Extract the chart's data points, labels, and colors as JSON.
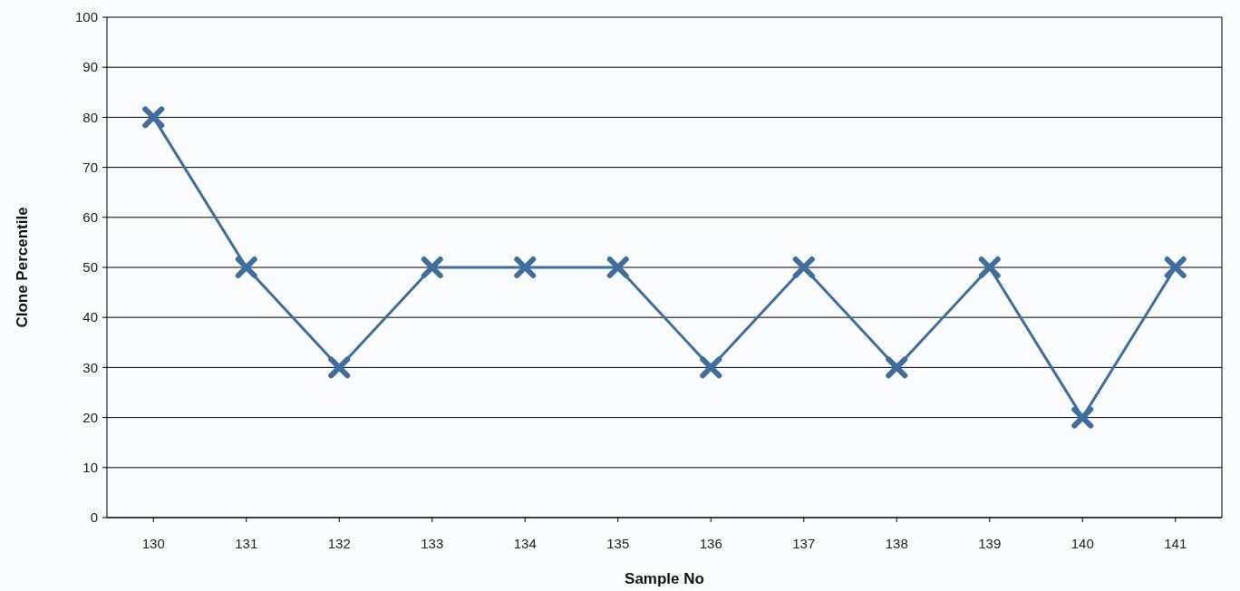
{
  "chart_data": {
    "type": "line",
    "xlabel": "Sample No",
    "ylabel": "Clone Percentile",
    "categories": [
      "130",
      "131",
      "132",
      "133",
      "134",
      "135",
      "136",
      "137",
      "138",
      "139",
      "140",
      "141"
    ],
    "series": [
      {
        "color": "#3f6d9e",
        "values": [
          80,
          50,
          30,
          50,
          50,
          50,
          30,
          50,
          30,
          50,
          20,
          50
        ]
      }
    ],
    "ylim": [
      0,
      100
    ],
    "yticks": [
      0,
      10,
      20,
      30,
      40,
      50,
      60,
      70,
      80,
      90,
      100
    ],
    "grid": "y",
    "marker": "cross",
    "line_style": "solid"
  }
}
